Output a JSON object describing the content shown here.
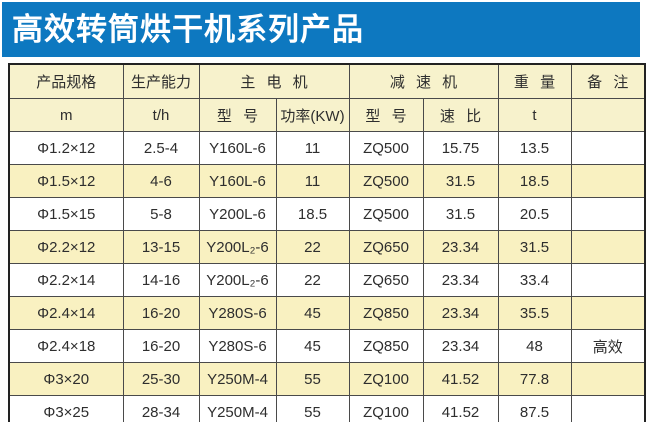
{
  "title": "高效转筒烘干机系列产品",
  "colors": {
    "title_bar_blue": "#0d78c0",
    "header_cream": "#f7f2cc",
    "alt_row_yellow": "#f9f1c1",
    "grid_border": "#4a4a4a"
  },
  "table": {
    "group_headers": [
      {
        "label": "产品规格"
      },
      {
        "label": "生产能力"
      },
      {
        "label": "主 电 机"
      },
      {
        "label": "减 速 机"
      },
      {
        "label": "重 量"
      },
      {
        "label": "备 注"
      }
    ],
    "unit_headers": [
      "m",
      "t/h",
      "型 号",
      "功率(KW)",
      "型 号",
      "速 比",
      "t",
      ""
    ],
    "rows": [
      [
        "Φ1.2×12",
        "2.5-4",
        "Y160L-6",
        "11",
        "ZQ500",
        "15.75",
        "13.5",
        ""
      ],
      [
        "Φ1.5×12",
        "4-6",
        "Y160L-6",
        "11",
        "ZQ500",
        "31.5",
        "18.5",
        ""
      ],
      [
        "Φ1.5×15",
        "5-8",
        "Y200L-6",
        "18.5",
        "ZQ500",
        "31.5",
        "20.5",
        ""
      ],
      [
        "Φ2.2×12",
        "13-15",
        "Y200L₂-6",
        "22",
        "ZQ650",
        "23.34",
        "31.5",
        ""
      ],
      [
        "Φ2.2×14",
        "14-16",
        "Y200L₂-6",
        "22",
        "ZQ650",
        "23.34",
        "33.4",
        ""
      ],
      [
        "Φ2.4×14",
        "16-20",
        "Y280S-6",
        "45",
        "ZQ850",
        "23.34",
        "35.5",
        ""
      ],
      [
        "Φ2.4×18",
        "16-20",
        "Y280S-6",
        "45",
        "ZQ850",
        "23.34",
        "48",
        "高效"
      ],
      [
        "Φ3×20",
        "25-30",
        "Y250M-4",
        "55",
        "ZQ100",
        "41.52",
        "77.8",
        ""
      ],
      [
        "Φ3×25",
        "28-34",
        "Y250M-4",
        "55",
        "ZQ100",
        "41.52",
        "87.5",
        ""
      ]
    ]
  }
}
